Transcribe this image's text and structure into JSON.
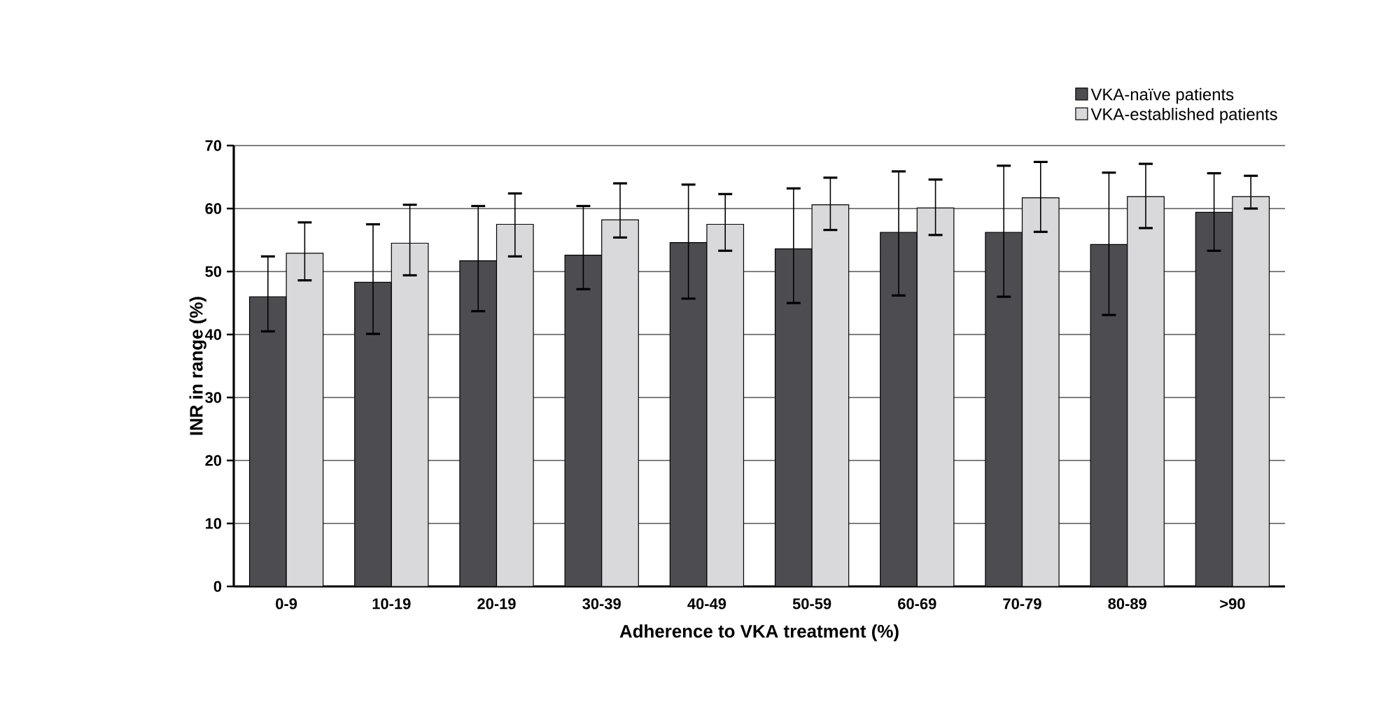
{
  "chart_data": {
    "type": "bar",
    "xlabel": "Adherence to VKA treatment (%)",
    "ylabel": "INR in range (%)",
    "categories": [
      "0-9",
      "10-19",
      "20-19",
      "30-39",
      "40-49",
      "50-59",
      "60-69",
      "70-79",
      "80-89",
      ">90"
    ],
    "series": [
      {
        "name": "VKA-naïve patients",
        "color": "#4d4c51",
        "values": [
          46.0,
          48.3,
          51.7,
          52.6,
          54.6,
          53.6,
          56.2,
          56.2,
          54.3,
          59.4
        ],
        "errors": [
          [
            40.5,
            52.4
          ],
          [
            40.1,
            57.5
          ],
          [
            43.7,
            60.4
          ],
          [
            47.2,
            60.4
          ],
          [
            45.7,
            63.8
          ],
          [
            45.0,
            63.2
          ],
          [
            46.2,
            65.9
          ],
          [
            46.0,
            66.8
          ],
          [
            43.1,
            65.7
          ],
          [
            53.3,
            65.6
          ]
        ]
      },
      {
        "name": "VKA-established patients",
        "color": "#d9d9db",
        "values": [
          52.9,
          54.5,
          57.5,
          58.2,
          57.5,
          60.6,
          60.1,
          61.7,
          61.9,
          61.9
        ],
        "errors": [
          [
            48.6,
            57.8
          ],
          [
            49.4,
            60.6
          ],
          [
            52.4,
            62.4
          ],
          [
            55.4,
            64.0
          ],
          [
            53.3,
            62.3
          ],
          [
            56.6,
            64.9
          ],
          [
            55.8,
            64.6
          ],
          [
            56.3,
            67.4
          ],
          [
            56.9,
            67.1
          ],
          [
            60.0,
            65.2
          ]
        ]
      }
    ],
    "ylim": [
      0,
      70
    ],
    "yticks": [
      0,
      10,
      20,
      30,
      40,
      50,
      60,
      70
    ],
    "grid": "y",
    "legend": "top right"
  }
}
